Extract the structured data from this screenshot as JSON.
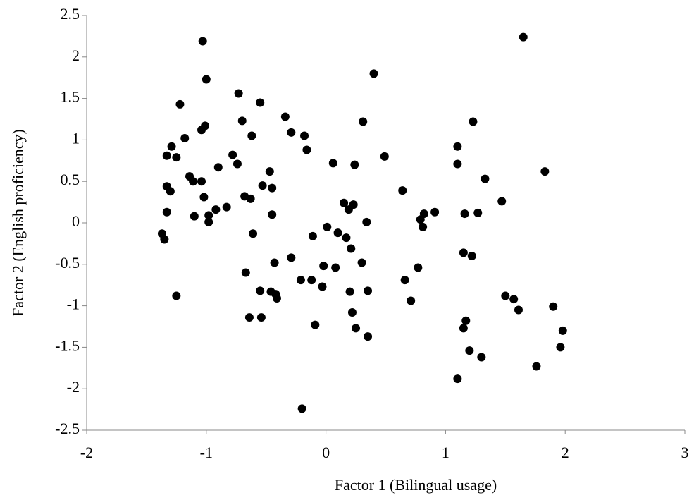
{
  "chart_data": {
    "type": "scatter",
    "x_label": "Factor 1 (Bilingual usage)",
    "y_label": "Factor 2 (English proficiency)",
    "color": "#000000",
    "x": [
      -1.03,
      1.65,
      -1.0,
      0.4,
      -0.73,
      -1.22,
      -0.55,
      -0.7,
      -0.34,
      0.31,
      1.23,
      -1.01,
      -1.04,
      -0.62,
      -0.29,
      -0.18,
      -1.18,
      -1.29,
      1.1,
      -0.16,
      -0.78,
      -1.33,
      -1.25,
      0.49,
      -0.74,
      0.06,
      0.24,
      1.1,
      -0.9,
      -0.47,
      1.83,
      -1.14,
      1.33,
      -1.11,
      -1.04,
      -0.53,
      -1.33,
      -1.3,
      -0.45,
      0.64,
      -0.68,
      -1.02,
      -0.63,
      1.47,
      0.15,
      0.23,
      -0.83,
      -0.92,
      0.19,
      -1.33,
      -0.45,
      -1.1,
      -0.98,
      0.91,
      0.82,
      1.16,
      1.27,
      0.79,
      -0.98,
      0.34,
      0.81,
      0.01,
      -0.61,
      0.1,
      -1.37,
      -0.11,
      0.17,
      -1.35,
      0.21,
      1.15,
      1.22,
      -0.29,
      0.3,
      -0.43,
      -0.02,
      0.08,
      0.77,
      -0.67,
      -0.21,
      -0.12,
      0.66,
      -0.03,
      -0.55,
      -0.46,
      0.2,
      0.35,
      -0.42,
      -1.25,
      -0.41,
      1.5,
      1.57,
      0.71,
      1.9,
      1.61,
      0.22,
      -0.64,
      -0.54,
      1.17,
      -0.09,
      1.15,
      0.25,
      1.98,
      0.35,
      1.96,
      1.2,
      1.3,
      1.76,
      1.1,
      -0.2
    ],
    "values": [
      2.19,
      2.24,
      1.73,
      1.8,
      1.56,
      1.43,
      1.45,
      1.23,
      1.28,
      1.22,
      1.22,
      1.17,
      1.12,
      1.05,
      1.09,
      1.05,
      1.02,
      0.92,
      0.92,
      0.88,
      0.82,
      0.81,
      0.79,
      0.8,
      0.71,
      0.72,
      0.7,
      0.71,
      0.67,
      0.62,
      0.62,
      0.56,
      0.53,
      0.5,
      0.5,
      0.45,
      0.44,
      0.38,
      0.42,
      0.39,
      0.32,
      0.31,
      0.29,
      0.26,
      0.24,
      0.22,
      0.19,
      0.16,
      0.16,
      0.13,
      0.1,
      0.08,
      0.09,
      0.13,
      0.11,
      0.11,
      0.12,
      0.04,
      0.01,
      0.01,
      -0.05,
      -0.05,
      -0.13,
      -0.12,
      -0.13,
      -0.16,
      -0.18,
      -0.2,
      -0.31,
      -0.36,
      -0.4,
      -0.42,
      -0.48,
      -0.48,
      -0.52,
      -0.54,
      -0.54,
      -0.6,
      -0.69,
      -0.69,
      -0.69,
      -0.77,
      -0.82,
      -0.83,
      -0.83,
      -0.82,
      -0.86,
      -0.88,
      -0.91,
      -0.88,
      -0.92,
      -0.94,
      -1.01,
      -1.05,
      -1.08,
      -1.14,
      -1.14,
      -1.18,
      -1.23,
      -1.27,
      -1.27,
      -1.3,
      -1.37,
      -1.5,
      -1.54,
      -1.62,
      -1.73,
      -1.88,
      -2.24
    ],
    "xlim": [
      -2,
      3
    ],
    "xticks": [
      -2,
      -1,
      0,
      1,
      2,
      3
    ],
    "ylim": [
      -2.5,
      2.5
    ],
    "yticks": [
      2.5,
      2,
      1.5,
      1,
      0.5,
      0,
      -0.5,
      -1,
      -1.5,
      -2,
      -2.5
    ]
  }
}
